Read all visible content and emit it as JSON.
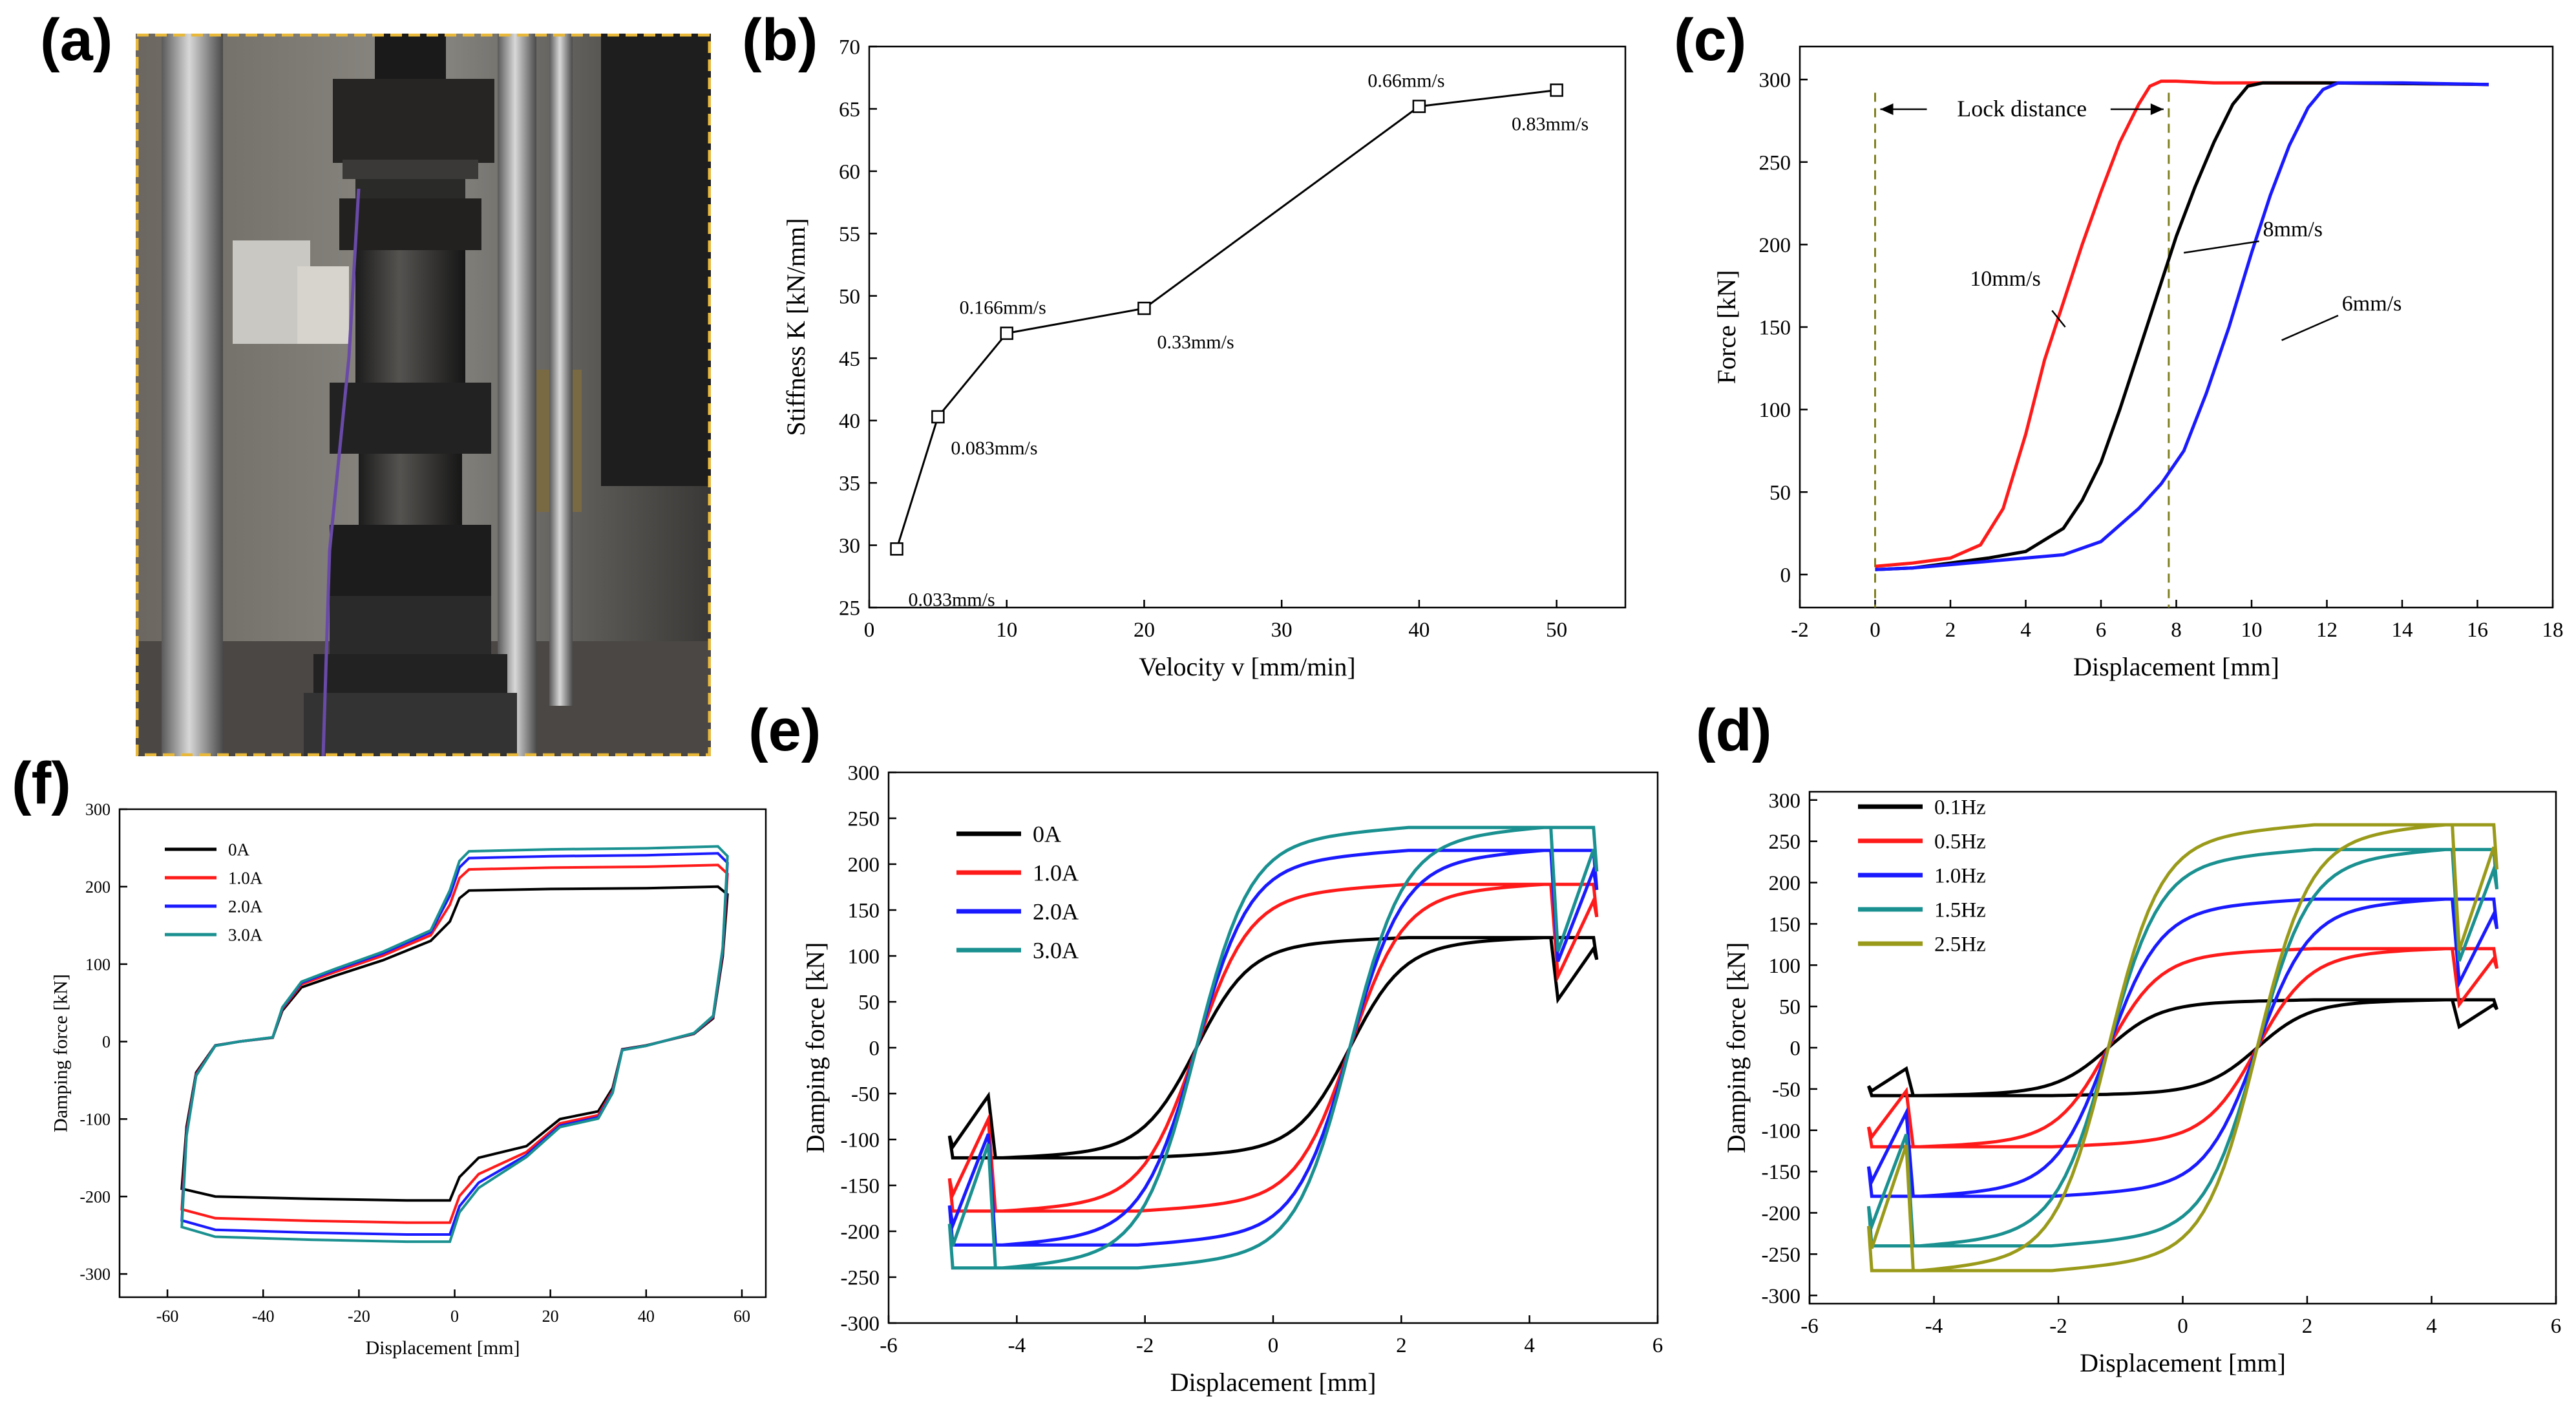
{
  "panels": {
    "a": "(a)",
    "b": "(b)",
    "c": "(c)",
    "d": "(d)",
    "e": "(e)",
    "f": "(f)"
  },
  "colors": {
    "black": "#000000",
    "red": "#ff1a1a",
    "blue": "#1a1aff",
    "teal": "#1a9090",
    "olive": "#9a9a1a",
    "dashed": "#808020",
    "photo_border": "#e8b83a"
  },
  "chart_data": [
    {
      "id": "b",
      "type": "line",
      "xlabel": "Velocity v [mm/min]",
      "ylabel": "Stiffness  K [kN/mm]",
      "xlim": [
        0,
        55
      ],
      "ylim": [
        25,
        70
      ],
      "xticks": [
        0,
        10,
        20,
        30,
        40,
        50
      ],
      "yticks": [
        25,
        30,
        35,
        40,
        45,
        50,
        55,
        60,
        65,
        70
      ],
      "x": [
        2,
        5,
        10,
        20,
        40,
        50
      ],
      "y": [
        29.7,
        40.3,
        47.0,
        49.0,
        65.2,
        66.5
      ],
      "point_labels": [
        "0.033mm/s",
        "0.083mm/s",
        "0.166mm/s",
        "0.33mm/s",
        "0.66mm/s",
        "0.83mm/s"
      ]
    },
    {
      "id": "c",
      "type": "line",
      "xlabel": "Displacement [mm]",
      "ylabel": "Force [kN]",
      "xlim": [
        -2,
        18
      ],
      "ylim": [
        -20,
        320
      ],
      "xticks": [
        -2,
        0,
        2,
        4,
        6,
        8,
        10,
        12,
        14,
        16,
        18
      ],
      "yticks": [
        0,
        50,
        100,
        150,
        200,
        250,
        300
      ],
      "annotation": "Lock distance",
      "lock_x": [
        0,
        7.8
      ],
      "series": [
        {
          "label": "10mm/s",
          "color_key": "red",
          "x": [
            0,
            1,
            2,
            2.8,
            3.4,
            4.0,
            4.5,
            5.0,
            5.5,
            6.0,
            6.5,
            7.0,
            7.3,
            7.6,
            8.0,
            9.0,
            12,
            16.3
          ],
          "y": [
            5,
            7,
            10,
            18,
            40,
            85,
            130,
            165,
            200,
            232,
            262,
            285,
            296,
            299,
            299,
            298,
            298,
            297
          ]
        },
        {
          "label": "8mm/s",
          "color_key": "black",
          "x": [
            0,
            1,
            2,
            3,
            4,
            5,
            5.5,
            6.0,
            6.5,
            7.0,
            7.5,
            8.0,
            8.5,
            9.0,
            9.5,
            9.9,
            10.3,
            12,
            16.3
          ],
          "y": [
            3,
            4,
            7,
            10,
            14,
            28,
            45,
            68,
            100,
            135,
            170,
            205,
            235,
            262,
            285,
            296,
            298,
            298,
            297
          ]
        },
        {
          "label": "6mm/s",
          "color_key": "blue",
          "x": [
            0,
            1,
            2,
            3,
            4,
            5,
            6,
            7,
            7.6,
            8.2,
            8.8,
            9.4,
            10.0,
            10.5,
            11.0,
            11.5,
            11.9,
            12.3,
            14,
            16.3
          ],
          "y": [
            3,
            4,
            6,
            8,
            10,
            12,
            20,
            40,
            55,
            75,
            110,
            150,
            195,
            230,
            260,
            283,
            294,
            298,
            298,
            297
          ]
        }
      ]
    },
    {
      "id": "f",
      "type": "line",
      "xlabel": "Displacement [mm]",
      "ylabel": "Damping force [kN]",
      "xlim": [
        -70,
        65
      ],
      "ylim": [
        -330,
        300
      ],
      "xticks": [
        -60,
        -40,
        -20,
        0,
        20,
        40,
        60
      ],
      "yticks": [
        -300,
        -200,
        -100,
        0,
        100,
        200,
        300
      ],
      "series": [
        {
          "label": "0A",
          "color_key": "black",
          "amp": 200
        },
        {
          "label": "1.0A",
          "color_key": "red",
          "amp": 228
        },
        {
          "label": "2.0A",
          "color_key": "blue",
          "amp": 243
        },
        {
          "label": "3.0A",
          "color_key": "teal",
          "amp": 252
        }
      ]
    },
    {
      "id": "e",
      "type": "line",
      "xlabel": "Displacement [mm]",
      "ylabel": "Damping force [kN]",
      "xlim": [
        -6,
        6
      ],
      "ylim": [
        -300,
        300
      ],
      "xticks": [
        -6,
        -4,
        -2,
        0,
        2,
        4,
        6
      ],
      "yticks": [
        -300,
        -250,
        -200,
        -150,
        -100,
        -50,
        0,
        50,
        100,
        150,
        200,
        250,
        300
      ],
      "series": [
        {
          "label": "0A",
          "color_key": "black",
          "amp": 120
        },
        {
          "label": "1.0A",
          "color_key": "red",
          "amp": 178
        },
        {
          "label": "2.0A",
          "color_key": "blue",
          "amp": 215
        },
        {
          "label": "3.0A",
          "color_key": "teal",
          "amp": 240
        }
      ]
    },
    {
      "id": "d",
      "type": "line",
      "xlabel": "Displacement [mm]",
      "ylabel": "Damping force [kN]",
      "xlim": [
        -6,
        6
      ],
      "ylim": [
        -310,
        310
      ],
      "xticks": [
        -6,
        -4,
        -2,
        0,
        2,
        4,
        6
      ],
      "yticks": [
        -300,
        -250,
        -200,
        -150,
        -100,
        -50,
        0,
        50,
        100,
        150,
        200,
        250,
        300
      ],
      "series": [
        {
          "label": "0.1Hz",
          "color_key": "black",
          "amp": 58
        },
        {
          "label": "0.5Hz",
          "color_key": "red",
          "amp": 120
        },
        {
          "label": "1.0Hz",
          "color_key": "blue",
          "amp": 180
        },
        {
          "label": "1.5Hz",
          "color_key": "teal",
          "amp": 240
        },
        {
          "label": "2.5Hz",
          "color_key": "olive",
          "amp": 270
        }
      ]
    }
  ]
}
